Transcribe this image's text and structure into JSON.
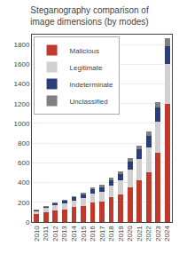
{
  "chart_data": {
    "type": "bar",
    "stacked": true,
    "title": "Steganography comparison of image dimensions (by modes)",
    "categories": [
      "2010",
      "2011",
      "2012",
      "2013",
      "2014",
      "2015",
      "2016",
      "2017",
      "2018",
      "2019",
      "2020",
      "2021",
      "2022",
      "2023",
      "2024"
    ],
    "series": [
      {
        "name": "Malicious",
        "color": "#c0392b",
        "values": [
          80,
          100,
          120,
          130,
          150,
          160,
          200,
          210,
          250,
          280,
          350,
          420,
          500,
          700,
          1200
        ]
      },
      {
        "name": "Legitimate",
        "color": "#d0d0d0",
        "values": [
          30,
          40,
          50,
          60,
          70,
          80,
          90,
          100,
          120,
          140,
          180,
          220,
          260,
          320,
          400
        ]
      },
      {
        "name": "Indeterminate",
        "color": "#2c3e7a",
        "values": [
          10,
          15,
          20,
          25,
          30,
          35,
          40,
          45,
          55,
          65,
          80,
          95,
          110,
          140,
          180
        ]
      },
      {
        "name": "Unclassified",
        "color": "#808080",
        "values": [
          5,
          8,
          10,
          12,
          15,
          18,
          20,
          22,
          25,
          30,
          35,
          40,
          48,
          60,
          80
        ]
      }
    ],
    "ylim": [
      0,
      1900
    ],
    "yticks": [
      0,
      200,
      400,
      600,
      800,
      1000,
      1200,
      1400,
      1600,
      1800
    ],
    "grid": true,
    "legend": "upper left"
  }
}
